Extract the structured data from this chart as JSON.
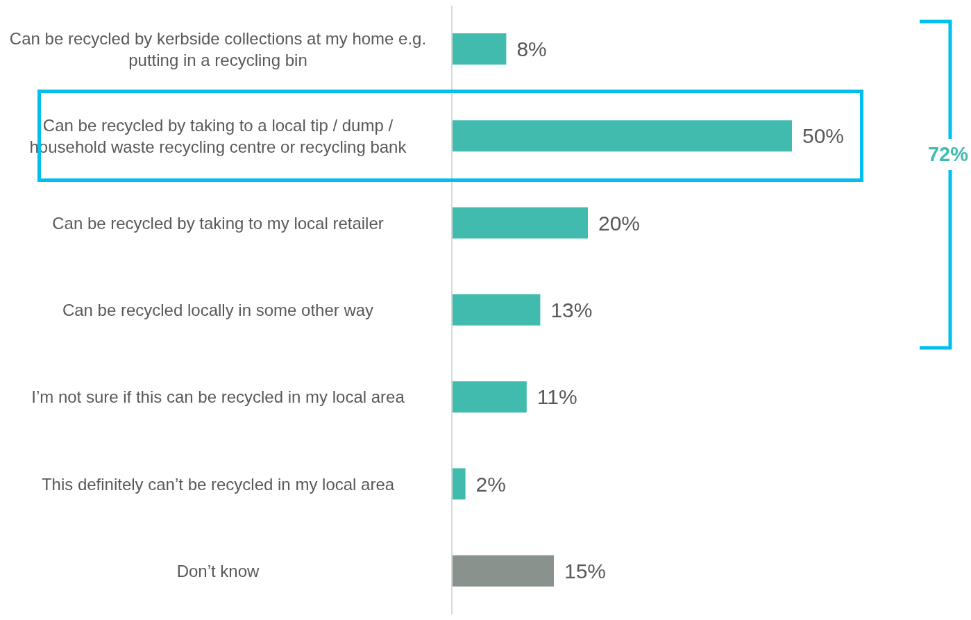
{
  "chart_data": {
    "type": "bar",
    "orientation": "horizontal",
    "categories": [
      "Can be recycled by kerbside collections at my home e.g. putting in a recycling bin",
      "Can be recycled by taking to a local tip / dump / household waste recycling centre or recycling bank",
      "Can be recycled by taking to my local retailer",
      "Can be recycled locally in some other way",
      "I’m not sure if this can be recycled in my local area",
      "This definitely can’t be recycled in my local area",
      "Don’t know"
    ],
    "values": [
      8,
      50,
      20,
      13,
      11,
      2,
      15
    ],
    "value_labels": [
      "8%",
      "50%",
      "20%",
      "13%",
      "11%",
      "2%",
      "15%"
    ],
    "colors": [
      "#41bbad",
      "#41bbad",
      "#41bbad",
      "#41bbad",
      "#41bbad",
      "#41bbad",
      "#8a928e"
    ],
    "annotations": [
      "72%"
    ]
  }
}
